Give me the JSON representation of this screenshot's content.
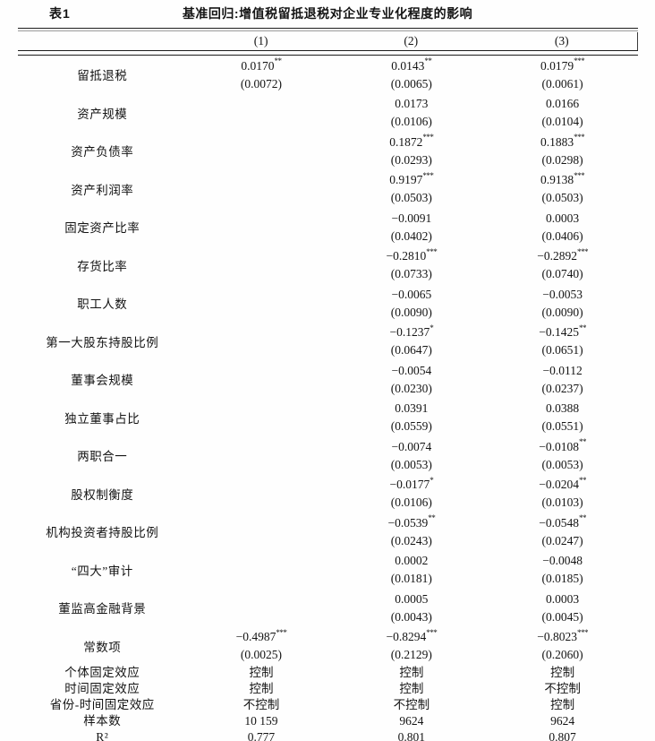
{
  "table": {
    "label": "表1",
    "title": "基准回归:增值税留抵退税对企业专业化程度的影响",
    "columns": [
      "(1)",
      "(2)",
      "(3)"
    ],
    "rows": [
      {
        "name": "留抵退税",
        "cells": [
          {
            "c": "0.0170",
            "s": "**",
            "se": "(0.0072)"
          },
          {
            "c": "0.0143",
            "s": "**",
            "se": "(0.0065)"
          },
          {
            "c": "0.0179",
            "s": "***",
            "se": "(0.0061)"
          }
        ]
      },
      {
        "name": "资产规模",
        "cells": [
          null,
          {
            "c": "0.0173",
            "s": "",
            "se": "(0.0106)"
          },
          {
            "c": "0.0166",
            "s": "",
            "se": "(0.0104)"
          }
        ]
      },
      {
        "name": "资产负债率",
        "cells": [
          null,
          {
            "c": "0.1872",
            "s": "***",
            "se": "(0.0293)"
          },
          {
            "c": "0.1883",
            "s": "***",
            "se": "(0.0298)"
          }
        ]
      },
      {
        "name": "资产利润率",
        "cells": [
          null,
          {
            "c": "0.9197",
            "s": "***",
            "se": "(0.0503)"
          },
          {
            "c": "0.9138",
            "s": "***",
            "se": "(0.0503)"
          }
        ]
      },
      {
        "name": "固定资产比率",
        "cells": [
          null,
          {
            "c": "−0.0091",
            "s": "",
            "se": "(0.0402)"
          },
          {
            "c": "0.0003",
            "s": "",
            "se": "(0.0406)"
          }
        ]
      },
      {
        "name": "存货比率",
        "cells": [
          null,
          {
            "c": "−0.2810",
            "s": "***",
            "se": "(0.0733)"
          },
          {
            "c": "−0.2892",
            "s": "***",
            "se": "(0.0740)"
          }
        ]
      },
      {
        "name": "职工人数",
        "cells": [
          null,
          {
            "c": "−0.0065",
            "s": "",
            "se": "(0.0090)"
          },
          {
            "c": "−0.0053",
            "s": "",
            "se": "(0.0090)"
          }
        ]
      },
      {
        "name": "第一大股东持股比例",
        "cells": [
          null,
          {
            "c": "−0.1237",
            "s": "*",
            "se": "(0.0647)"
          },
          {
            "c": "−0.1425",
            "s": "**",
            "se": "(0.0651)"
          }
        ]
      },
      {
        "name": "董事会规模",
        "cells": [
          null,
          {
            "c": "−0.0054",
            "s": "",
            "se": "(0.0230)"
          },
          {
            "c": "−0.0112",
            "s": "",
            "se": "(0.0237)"
          }
        ]
      },
      {
        "name": "独立董事占比",
        "cells": [
          null,
          {
            "c": "0.0391",
            "s": "",
            "se": "(0.0559)"
          },
          {
            "c": "0.0388",
            "s": "",
            "se": "(0.0551)"
          }
        ]
      },
      {
        "name": "两职合一",
        "cells": [
          null,
          {
            "c": "−0.0074",
            "s": "",
            "se": "(0.0053)"
          },
          {
            "c": "−0.0108",
            "s": "**",
            "se": "(0.0053)"
          }
        ]
      },
      {
        "name": "股权制衡度",
        "cells": [
          null,
          {
            "c": "−0.0177",
            "s": "*",
            "se": "(0.0106)"
          },
          {
            "c": "−0.0204",
            "s": "**",
            "se": "(0.0103)"
          }
        ]
      },
      {
        "name": "机构投资者持股比例",
        "cells": [
          null,
          {
            "c": "−0.0539",
            "s": "**",
            "se": "(0.0243)"
          },
          {
            "c": "−0.0548",
            "s": "**",
            "se": "(0.0247)"
          }
        ]
      },
      {
        "name": "“四大”审计",
        "cells": [
          null,
          {
            "c": "0.0002",
            "s": "",
            "se": "(0.0181)"
          },
          {
            "c": "−0.0048",
            "s": "",
            "se": "(0.0185)"
          }
        ]
      },
      {
        "name": "董监高金融背景",
        "cells": [
          null,
          {
            "c": "0.0005",
            "s": "",
            "se": "(0.0043)"
          },
          {
            "c": "0.0003",
            "s": "",
            "se": "(0.0045)"
          }
        ]
      },
      {
        "name": "常数项",
        "cells": [
          {
            "c": "−0.4987",
            "s": "***",
            "se": "(0.0025)"
          },
          {
            "c": "−0.8294",
            "s": "***",
            "se": "(0.2129)"
          },
          {
            "c": "−0.8023",
            "s": "***",
            "se": "(0.2060)"
          }
        ]
      }
    ],
    "stat_rows": [
      {
        "name": "个体固定效应",
        "values": [
          "控制",
          "控制",
          "控制"
        ]
      },
      {
        "name": "时间固定效应",
        "values": [
          "控制",
          "控制",
          "不控制"
        ]
      },
      {
        "name": "省份-时间固定效应",
        "values": [
          "不控制",
          "不控制",
          "控制"
        ]
      },
      {
        "name": "样本数",
        "values": [
          "10 159",
          "9624",
          "9624"
        ]
      },
      {
        "name": "R²",
        "values": [
          "0.777",
          "0.801",
          "0.807"
        ]
      }
    ]
  }
}
